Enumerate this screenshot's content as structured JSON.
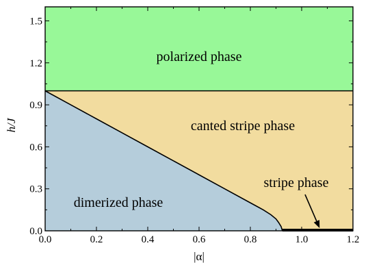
{
  "chart_data": {
    "type": "area",
    "xlabel": "|α|",
    "ylabel": "h/J",
    "xlim": [
      0.0,
      1.2
    ],
    "ylim": [
      0.0,
      1.6
    ],
    "xticks": [
      "0.0",
      "0.2",
      "0.4",
      "0.6",
      "0.8",
      "1.0",
      "1.2"
    ],
    "yticks": [
      "0.0",
      "0.3",
      "0.6",
      "0.9",
      "1.2",
      "1.5"
    ],
    "xtick_values": [
      0.0,
      0.2,
      0.4,
      0.6,
      0.8,
      1.0,
      1.2
    ],
    "ytick_values": [
      0.0,
      0.3,
      0.6,
      0.9,
      1.2,
      1.5
    ],
    "grid": false,
    "regions": [
      {
        "label": "polarized phase",
        "color": "#98f898"
      },
      {
        "label": "canted stripe phase",
        "color": "#f2dc9f"
      },
      {
        "label": "dimerized phase",
        "color": "#b5cddb"
      }
    ],
    "annotations": [
      {
        "label": "stripe phase",
        "points_to": [
          1.07,
          0.0
        ]
      }
    ],
    "boundaries": {
      "saturation_field": 1.0,
      "dimerized_boundary": [
        [
          0.0,
          1.0
        ],
        [
          0.1,
          0.9
        ],
        [
          0.2,
          0.8
        ],
        [
          0.3,
          0.7
        ],
        [
          0.4,
          0.6
        ],
        [
          0.5,
          0.5
        ],
        [
          0.6,
          0.4
        ],
        [
          0.7,
          0.3
        ],
        [
          0.8,
          0.2
        ],
        [
          0.85,
          0.15
        ],
        [
          0.88,
          0.115
        ],
        [
          0.9,
          0.085
        ],
        [
          0.91,
          0.06
        ],
        [
          0.92,
          0.03
        ],
        [
          0.925,
          0.0
        ]
      ],
      "stripe_line": [
        [
          0.925,
          0.0
        ],
        [
          1.2,
          0.0
        ]
      ]
    }
  }
}
